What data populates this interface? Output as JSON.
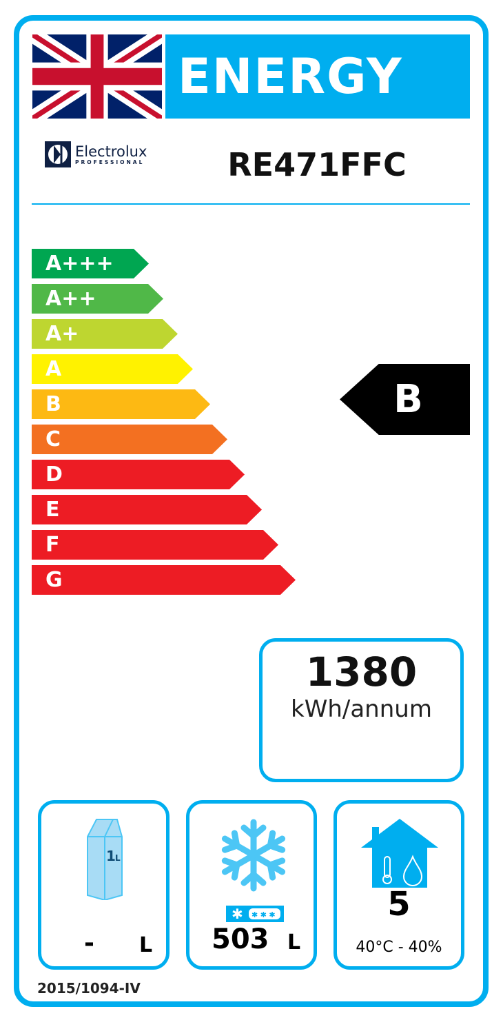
{
  "header": {
    "title": "ENERGY",
    "flag": "union-jack",
    "brand": "Electrolux",
    "brand_sub": "PROFESSIONAL",
    "model": "RE471FFC"
  },
  "scale": [
    {
      "label": "A+++",
      "color": "#00a651"
    },
    {
      "label": "A++",
      "color": "#50b848"
    },
    {
      "label": "A+",
      "color": "#bed630"
    },
    {
      "label": "A",
      "color": "#fff200"
    },
    {
      "label": "B",
      "color": "#fdb913"
    },
    {
      "label": "C",
      "color": "#f37021"
    },
    {
      "label": "D",
      "color": "#ed1c24"
    },
    {
      "label": "E",
      "color": "#ed1c24"
    },
    {
      "label": "F",
      "color": "#ed1c24"
    },
    {
      "label": "G",
      "color": "#ed1c24"
    }
  ],
  "rating": "B",
  "energy": {
    "value": "1380",
    "unit": "kWh/annum"
  },
  "fresh": {
    "icon": "milk-carton-icon",
    "carton_label": "1L",
    "value": "-",
    "unit": "L"
  },
  "frozen": {
    "icon": "snowflake-icon",
    "value": "503",
    "unit": "L"
  },
  "climate": {
    "icon": "house-climate-icon",
    "class": "5",
    "conditions": "40°C - 40%"
  },
  "footer": "2015/1094-IV",
  "colors": {
    "accent": "#00aeef",
    "icon_light": "#4cc6f5"
  }
}
